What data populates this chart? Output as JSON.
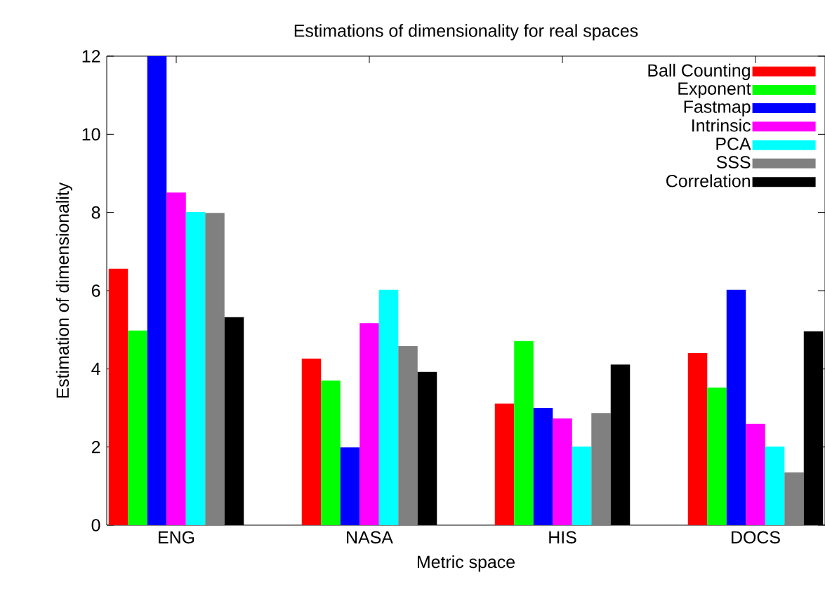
{
  "chart_data": {
    "type": "bar",
    "title": "Estimations of dimensionality for real spaces",
    "xlabel": "Metric space",
    "ylabel": "Estimation of dimensionality",
    "categories": [
      "ENG",
      "NASA",
      "HIS",
      "DOCS"
    ],
    "series": [
      {
        "name": "Ball Counting",
        "color": "#ff0000",
        "values": [
          6.56,
          4.26,
          3.11,
          4.4
        ]
      },
      {
        "name": "Exponent",
        "color": "#00ff00",
        "values": [
          4.98,
          3.7,
          4.71,
          3.52
        ]
      },
      {
        "name": "Fastmap",
        "color": "#0000ff",
        "values": [
          12,
          1.99,
          3.0,
          6.02
        ]
      },
      {
        "name": "Intrinsic",
        "color": "#ff00ff",
        "values": [
          8.51,
          5.17,
          2.73,
          2.59
        ]
      },
      {
        "name": "PCA",
        "color": "#00ffff",
        "values": [
          8.01,
          6.02,
          2.01,
          2.01
        ]
      },
      {
        "name": "SSS",
        "color": "#808080",
        "values": [
          7.99,
          4.58,
          2.87,
          1.35
        ]
      },
      {
        "name": "Correlation",
        "color": "#000000",
        "values": [
          5.32,
          3.92,
          4.11,
          4.96
        ]
      }
    ],
    "ylim": [
      0,
      12
    ],
    "yticks": [
      0,
      2,
      4,
      6,
      8,
      10,
      12
    ],
    "legend": "top right"
  }
}
